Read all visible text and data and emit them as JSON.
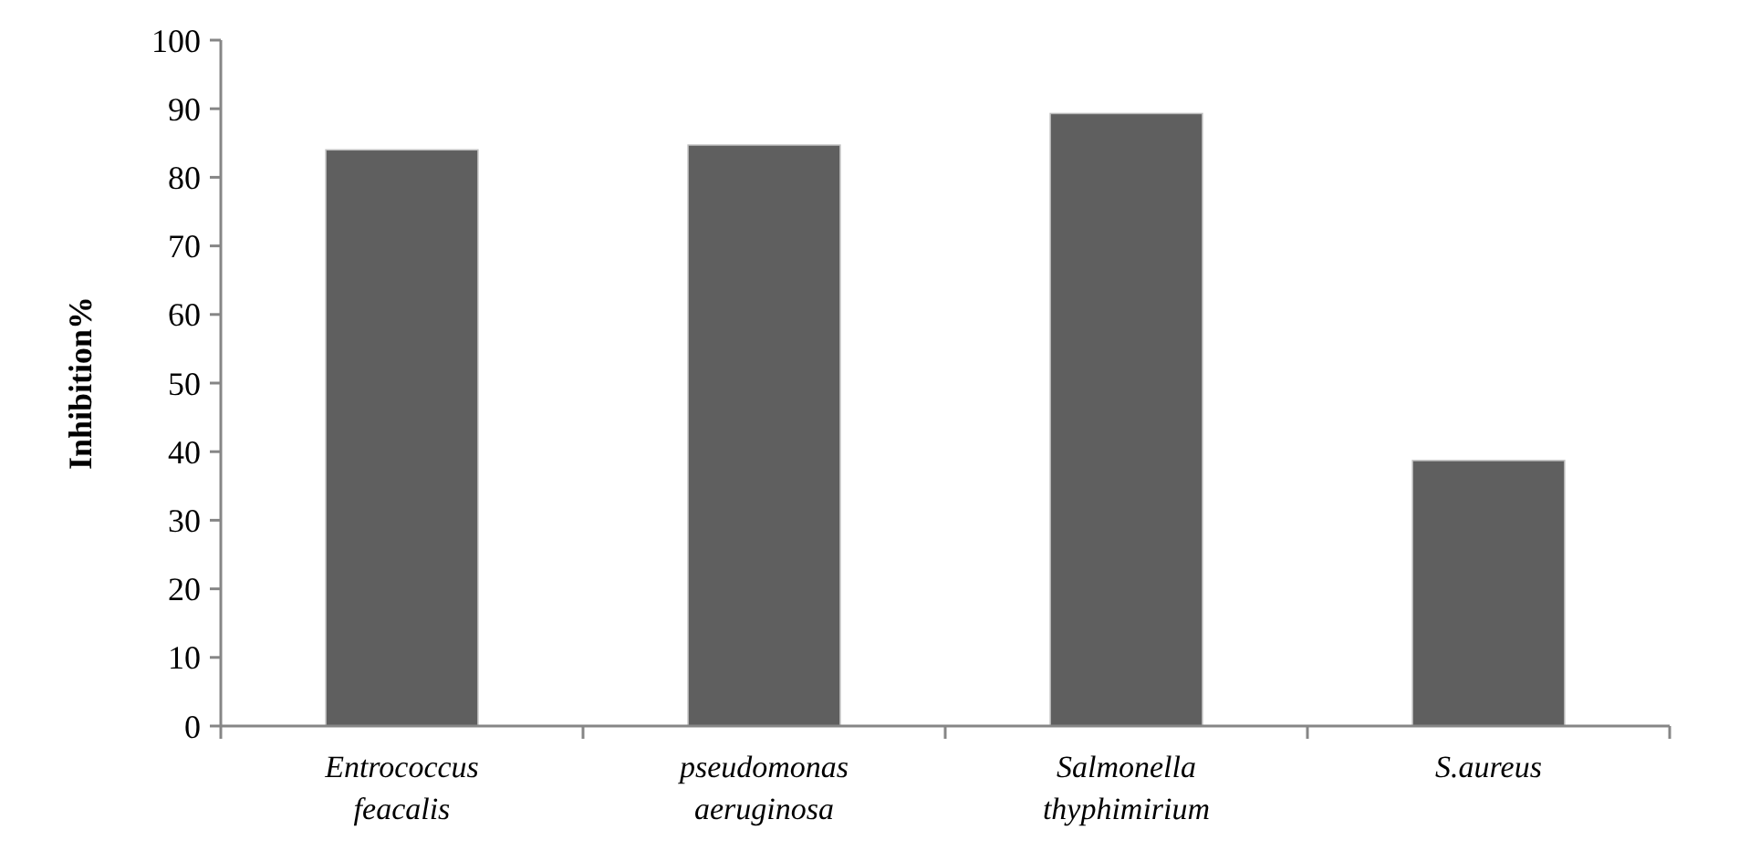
{
  "chart_data": {
    "type": "bar",
    "ylabel": "Inhibition%",
    "categories": [
      "Entrococcus feacalis",
      "pseudomonas aeruginosa",
      "Salmonella thyphimirium",
      "S.aureus"
    ],
    "values": [
      84,
      84.7,
      89.3,
      38.7
    ],
    "color": "#5f5f5f",
    "ylim": [
      0,
      100
    ],
    "yticks": [
      0,
      10,
      20,
      30,
      40,
      50,
      60,
      70,
      80,
      90,
      100
    ],
    "grid": false
  }
}
